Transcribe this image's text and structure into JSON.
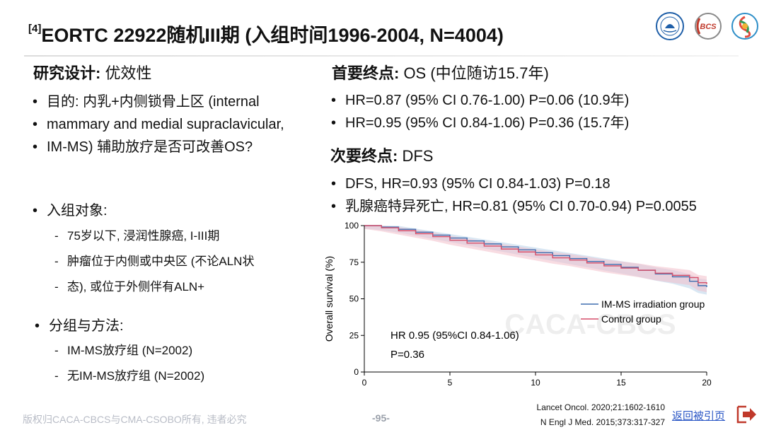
{
  "title": {
    "superscript": "[4]",
    "text": "EORTC 22922随机III期 (入组时间1996-2004, N=4004)"
  },
  "left": {
    "design_label": "研究设计:",
    "design_value": " 优效性",
    "purpose_lines": [
      "目的: 内乳+内侧锁骨上区 (internal",
      "mammary and medial supraclavicular,",
      "IM-MS) 辅助放疗是否可改善OS?"
    ],
    "population_title": "入组对象:",
    "population_items": [
      "75岁以下, 浸润性腺癌, I-III期",
      "肿瘤位于内侧或中央区 (不论ALN状",
      "态), 或位于外侧伴有ALN+"
    ],
    "groups_title": "分组与方法:",
    "groups_items": [
      "IM-MS放疗组 (N=2002)",
      "无IM-MS放疗组 (N=2002)"
    ]
  },
  "right": {
    "primary_label": "首要终点:",
    "primary_value": " OS (中位随访15.7年)",
    "primary_items": [
      "HR=0.87 (95% CI 0.76-1.00) P=0.06 (10.9年)",
      "HR=0.95 (95% CI 0.84-1.06) P=0.36 (15.7年)"
    ],
    "secondary_label": "次要终点:",
    "secondary_value": " DFS",
    "secondary_items": [
      "DFS, HR=0.93 (95% CI 0.84-1.03) P=0.18",
      "乳腺癌特异死亡, HR=0.81 (95% CI 0.70-0.94) P=0.0055"
    ]
  },
  "chart_data": {
    "type": "line",
    "ylabel": "Overall survival (%)",
    "xlabel": "",
    "xlim": [
      0,
      20
    ],
    "ylim": [
      0,
      100
    ],
    "xticks": [
      0,
      5,
      10,
      15,
      20
    ],
    "yticks": [
      0,
      25,
      50,
      75,
      100
    ],
    "annotation_lines": [
      "HR 0.95 (95%CI 0.84-1.06)",
      "P=0.36"
    ],
    "watermark": "CACA-CBCS",
    "legend_position": "right",
    "series": [
      {
        "name": "IM-MS irradiation group",
        "color": "#3e6fb0",
        "band": "#b9d3ea",
        "x": [
          0,
          1,
          2,
          3,
          4,
          5,
          6,
          7,
          8,
          9,
          10,
          11,
          12,
          13,
          14,
          15,
          16,
          17,
          18,
          19,
          19.5,
          20
        ],
        "y": [
          100,
          99,
          97.5,
          95.5,
          93.5,
          91.5,
          89.5,
          87.5,
          85.5,
          83.5,
          81.5,
          79.5,
          77.5,
          75.5,
          73.5,
          71.5,
          69.5,
          67,
          65,
          62,
          59,
          58
        ]
      },
      {
        "name": "Control group",
        "color": "#d64f6a",
        "band": "#f3c0cb",
        "x": [
          0,
          1,
          2,
          3,
          4,
          5,
          6,
          7,
          8,
          9,
          10,
          11,
          12,
          13,
          14,
          15,
          16,
          17,
          18,
          19,
          19.5,
          20
        ],
        "y": [
          100,
          98.5,
          96.5,
          94.5,
          92.5,
          90,
          88,
          86,
          84,
          82,
          80,
          78,
          76.5,
          74.5,
          72.5,
          71,
          69.5,
          67.5,
          66,
          64.5,
          61,
          60
        ]
      }
    ]
  },
  "footer": {
    "copyright": "版权归CACA-CBCS与CMA-CSOBO所有, 违者必究",
    "page_number": "-95-",
    "refs": [
      "Lancet Oncol. 2020;21:1602-1610",
      "N Engl J Med. 2015;373:317-327"
    ],
    "back_link": "返回被引页"
  },
  "logos": [
    {
      "name": "society-seal-logo",
      "color": "#1f5fa8"
    },
    {
      "name": "bcs-logo",
      "text": "BCS",
      "color": "#c0392b"
    },
    {
      "name": "ribbon-swirl-logo",
      "color": "#2f8fc8"
    }
  ]
}
